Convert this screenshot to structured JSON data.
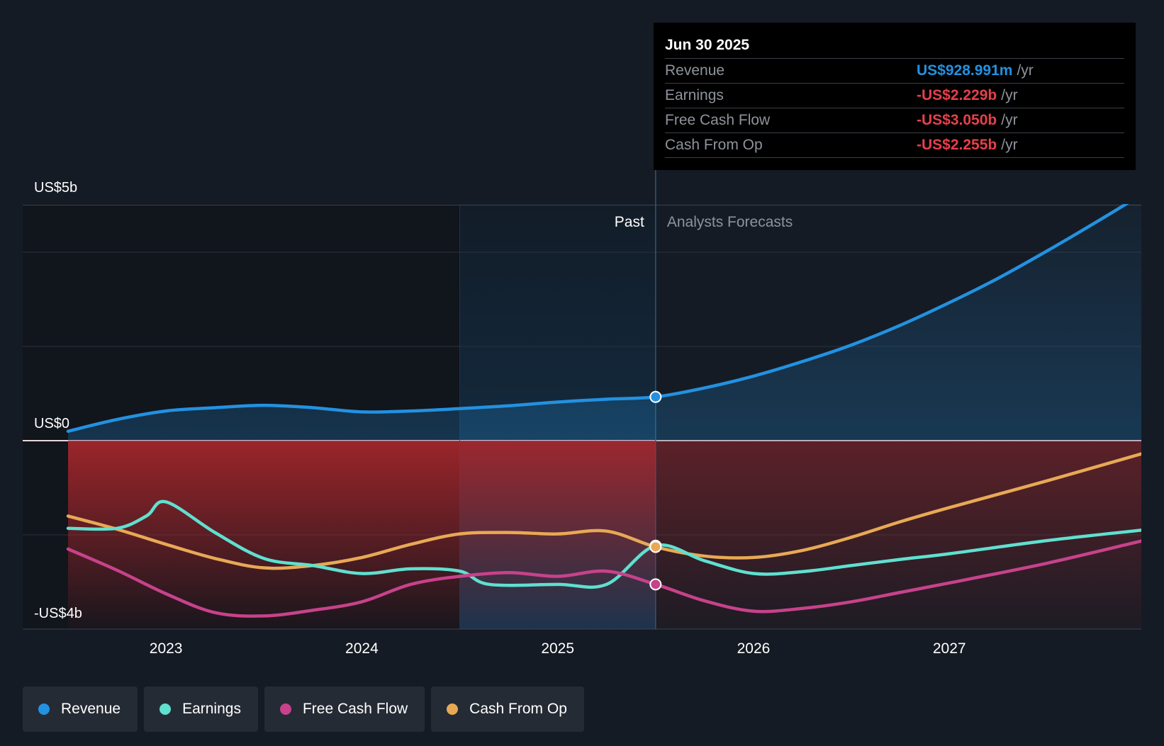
{
  "chart_data": {
    "type": "line",
    "y_axis": {
      "labels": [
        "US$5b",
        "US$0",
        "-US$4b"
      ],
      "ylim": [
        -4,
        5
      ],
      "unit": "billion USD"
    },
    "x_axis": {
      "tick_labels": [
        "2023",
        "2024",
        "2025",
        "2026",
        "2027"
      ],
      "tick_values": [
        2023,
        2024,
        2025,
        2026,
        2027
      ],
      "xlim": [
        2022.5,
        2027.98
      ]
    },
    "regions": {
      "past_label": "Past",
      "forecast_label": "Analysts Forecasts",
      "divider_x": 2025.5,
      "highlight_start_x": 2024.5
    },
    "grid": true,
    "series": [
      {
        "name": "Revenue",
        "color": "#2391e1",
        "points": [
          [
            2022.5,
            0.2
          ],
          [
            2022.75,
            0.45
          ],
          [
            2023.0,
            0.63
          ],
          [
            2023.25,
            0.7
          ],
          [
            2023.5,
            0.75
          ],
          [
            2023.75,
            0.7
          ],
          [
            2024.0,
            0.61
          ],
          [
            2024.25,
            0.63
          ],
          [
            2024.5,
            0.68
          ],
          [
            2024.75,
            0.74
          ],
          [
            2025.0,
            0.82
          ],
          [
            2025.25,
            0.88
          ],
          [
            2025.5,
            0.929
          ],
          [
            2025.75,
            1.12
          ],
          [
            2026.0,
            1.37
          ],
          [
            2026.25,
            1.68
          ],
          [
            2026.5,
            2.03
          ],
          [
            2026.75,
            2.45
          ],
          [
            2027.0,
            2.93
          ],
          [
            2027.25,
            3.45
          ],
          [
            2027.5,
            4.03
          ],
          [
            2027.75,
            4.64
          ],
          [
            2027.98,
            5.22
          ]
        ]
      },
      {
        "name": "Earnings",
        "color": "#5fe0d0",
        "points": [
          [
            2022.5,
            -1.86
          ],
          [
            2022.75,
            -1.86
          ],
          [
            2022.9,
            -1.6
          ],
          [
            2023.0,
            -1.3
          ],
          [
            2023.25,
            -1.95
          ],
          [
            2023.5,
            -2.5
          ],
          [
            2023.75,
            -2.65
          ],
          [
            2024.0,
            -2.82
          ],
          [
            2024.25,
            -2.72
          ],
          [
            2024.5,
            -2.77
          ],
          [
            2024.65,
            -3.05
          ],
          [
            2025.0,
            -3.05
          ],
          [
            2025.25,
            -3.05
          ],
          [
            2025.5,
            -2.229
          ],
          [
            2025.75,
            -2.55
          ],
          [
            2026.0,
            -2.82
          ],
          [
            2026.25,
            -2.78
          ],
          [
            2026.5,
            -2.65
          ],
          [
            2026.75,
            -2.52
          ],
          [
            2027.0,
            -2.4
          ],
          [
            2027.5,
            -2.12
          ],
          [
            2027.98,
            -1.9
          ]
        ]
      },
      {
        "name": "Free Cash Flow",
        "color": "#c7428b",
        "points": [
          [
            2022.5,
            -2.3
          ],
          [
            2022.75,
            -2.75
          ],
          [
            2023.0,
            -3.25
          ],
          [
            2023.25,
            -3.65
          ],
          [
            2023.5,
            -3.72
          ],
          [
            2023.75,
            -3.6
          ],
          [
            2024.0,
            -3.42
          ],
          [
            2024.25,
            -3.05
          ],
          [
            2024.5,
            -2.88
          ],
          [
            2024.75,
            -2.8
          ],
          [
            2025.0,
            -2.88
          ],
          [
            2025.25,
            -2.77
          ],
          [
            2025.5,
            -3.05
          ],
          [
            2025.75,
            -3.4
          ],
          [
            2026.0,
            -3.62
          ],
          [
            2026.25,
            -3.56
          ],
          [
            2026.5,
            -3.42
          ],
          [
            2026.75,
            -3.22
          ],
          [
            2027.0,
            -3.02
          ],
          [
            2027.5,
            -2.6
          ],
          [
            2027.98,
            -2.13
          ]
        ]
      },
      {
        "name": "Cash From Op",
        "color": "#e8a955",
        "points": [
          [
            2022.5,
            -1.6
          ],
          [
            2022.75,
            -1.88
          ],
          [
            2023.0,
            -2.2
          ],
          [
            2023.25,
            -2.5
          ],
          [
            2023.5,
            -2.7
          ],
          [
            2023.75,
            -2.65
          ],
          [
            2024.0,
            -2.48
          ],
          [
            2024.25,
            -2.2
          ],
          [
            2024.5,
            -1.98
          ],
          [
            2024.75,
            -1.95
          ],
          [
            2025.0,
            -1.98
          ],
          [
            2025.25,
            -1.92
          ],
          [
            2025.5,
            -2.255
          ],
          [
            2025.75,
            -2.45
          ],
          [
            2026.0,
            -2.48
          ],
          [
            2026.25,
            -2.33
          ],
          [
            2026.5,
            -2.05
          ],
          [
            2026.75,
            -1.72
          ],
          [
            2027.0,
            -1.42
          ],
          [
            2027.5,
            -0.85
          ],
          [
            2027.98,
            -0.28
          ]
        ]
      }
    ]
  },
  "tooltip": {
    "date": "Jun 30 2025",
    "rows": [
      {
        "label": "Revenue",
        "value": "US$928.991m",
        "unit": "/yr",
        "color": "#2391e1"
      },
      {
        "label": "Earnings",
        "value": "-US$2.229b",
        "unit": "/yr",
        "color": "#e5404b"
      },
      {
        "label": "Free Cash Flow",
        "value": "-US$3.050b",
        "unit": "/yr",
        "color": "#e5404b"
      },
      {
        "label": "Cash From Op",
        "value": "-US$2.255b",
        "unit": "/yr",
        "color": "#e5404b"
      }
    ]
  },
  "legend": [
    {
      "label": "Revenue",
      "color": "#2391e1"
    },
    {
      "label": "Earnings",
      "color": "#5fe0d0"
    },
    {
      "label": "Free Cash Flow",
      "color": "#c7428b"
    },
    {
      "label": "Cash From Op",
      "color": "#e8a955"
    }
  ]
}
